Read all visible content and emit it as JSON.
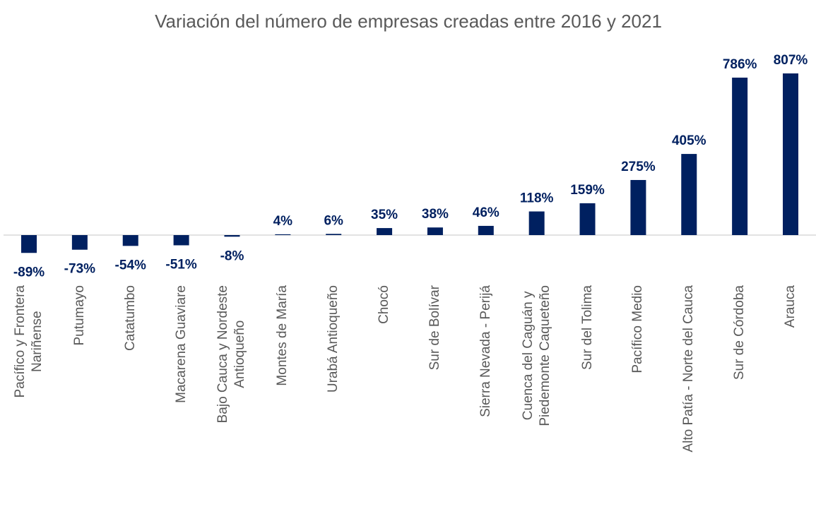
{
  "chart_data": {
    "type": "bar",
    "title": "Variación del número de empresas creadas entre 2016 y 2021",
    "categories": [
      "Pacífico y Frontera\nNariñense",
      "Putumayo",
      "Catatumbo",
      "Macarena Guaviare",
      "Bajo Cauca y Nordeste\nAntioqueño",
      "Montes de María",
      "Urabá Antioqueño",
      "Chocó",
      "Sur de Bolívar",
      "Sierra Nevada - Perijá",
      "Cuenca del Caguán y\nPiedemonte Caqueteño",
      "Sur del Tolima",
      "Pacífico Medio",
      "Alto Patía - Norte del Cauca",
      "Sur de Córdoba",
      "Arauca"
    ],
    "values": [
      -89,
      -73,
      -54,
      -51,
      -8,
      4,
      6,
      35,
      38,
      46,
      118,
      159,
      275,
      405,
      786,
      807
    ],
    "value_labels": [
      "-89%",
      "-73%",
      "-54%",
      "-51%",
      "-8%",
      "4%",
      "6%",
      "35%",
      "38%",
      "46%",
      "118%",
      "159%",
      "275%",
      "405%",
      "786%",
      "807%"
    ],
    "color": "#002060"
  }
}
